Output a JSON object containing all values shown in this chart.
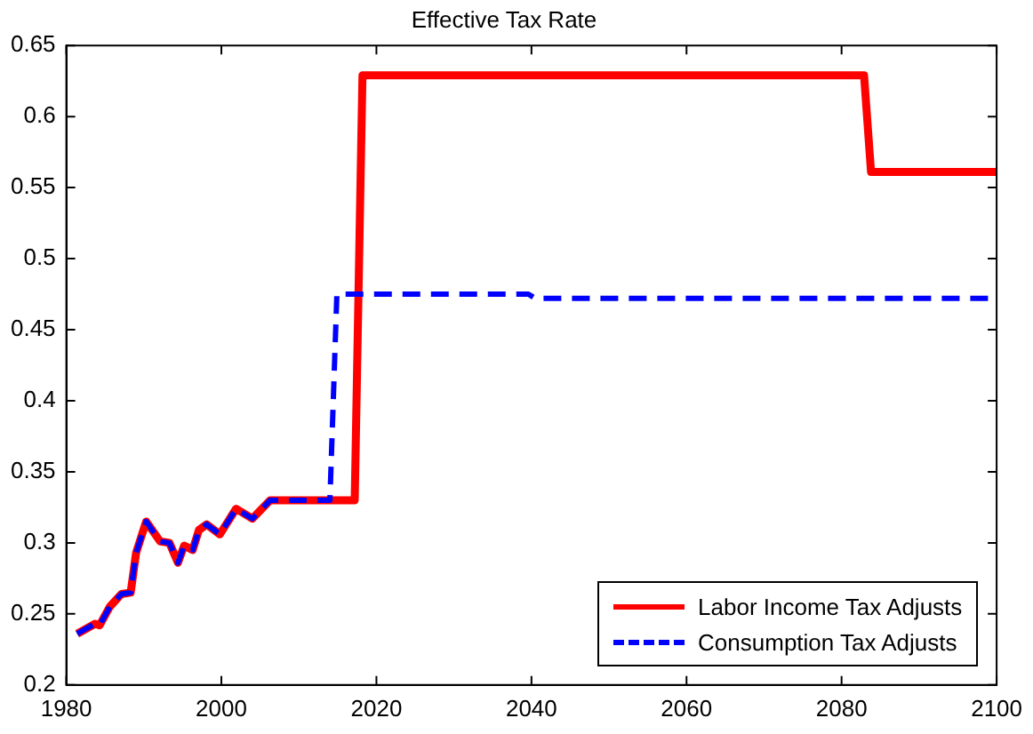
{
  "chart_data": {
    "type": "line",
    "title": "Effective Tax Rate",
    "xlim": [
      1980,
      2100
    ],
    "xticks": [
      1980,
      2000,
      2020,
      2040,
      2060,
      2080,
      2100
    ],
    "ylim": [
      0.2,
      0.65
    ],
    "yticks": [
      0.2,
      0.25,
      0.3,
      0.35,
      0.4,
      0.45,
      0.5,
      0.55,
      0.6,
      0.65
    ],
    "grid": false,
    "legend": "bottom right",
    "marker": "none",
    "series": [
      {
        "name": "Labor Income Tax Adjusts",
        "color": "#ff0000",
        "line_style": "solid",
        "x": [
          1981.4,
          1983.7,
          1984.3,
          1985.6,
          1987.1,
          1988.3,
          1989,
          1990.3,
          1992.1,
          1993.3,
          1994.4,
          1995.2,
          1996.3,
          1997.1,
          1998.1,
          1999.8,
          2001.9,
          2004,
          2006.3,
          2014,
          2017.2,
          2018.2,
          2082.9,
          2083.8,
          2100
        ],
        "values": [
          0.236,
          0.243,
          0.242,
          0.255,
          0.264,
          0.265,
          0.293,
          0.315,
          0.301,
          0.3,
          0.286,
          0.298,
          0.295,
          0.309,
          0.313,
          0.306,
          0.324,
          0.317,
          0.33,
          0.33,
          0.33,
          0.629,
          0.629,
          0.561,
          0.561
        ]
      },
      {
        "name": "Consumption Tax Adjusts",
        "color": "#0000ff",
        "line_style": "dashed",
        "x": [
          1981.4,
          1983.7,
          1984.3,
          1985.6,
          1987.1,
          1988.3,
          1989,
          1990.3,
          1992.1,
          1993.3,
          1994.4,
          1995.2,
          1996.3,
          1997.1,
          1998.1,
          1999.8,
          2001.9,
          2004,
          2006.3,
          2014,
          2014.9,
          2039.6,
          2040.5,
          2100
        ],
        "values": [
          0.236,
          0.243,
          0.242,
          0.255,
          0.264,
          0.265,
          0.293,
          0.315,
          0.301,
          0.3,
          0.286,
          0.298,
          0.295,
          0.309,
          0.313,
          0.306,
          0.324,
          0.317,
          0.33,
          0.33,
          0.475,
          0.475,
          0.472,
          0.472
        ]
      }
    ]
  }
}
